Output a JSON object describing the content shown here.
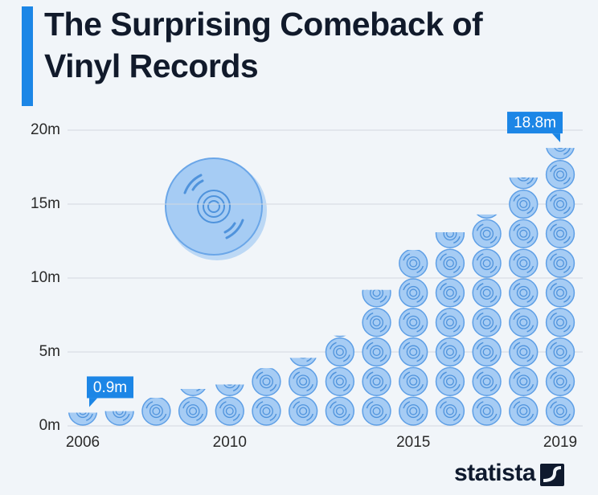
{
  "chart_data": {
    "type": "pictogram",
    "title": "The Surprising Comeback of Vinyl Records",
    "x": [
      2006,
      2007,
      2008,
      2009,
      2010,
      2011,
      2012,
      2013,
      2014,
      2015,
      2016,
      2017,
      2018,
      2019
    ],
    "values": [
      0.9,
      1.0,
      1.9,
      2.5,
      2.8,
      3.9,
      4.6,
      6.1,
      9.2,
      11.9,
      13.1,
      14.3,
      16.8,
      18.8
    ],
    "value_labels": [
      "0.9m",
      null,
      null,
      null,
      null,
      null,
      null,
      null,
      null,
      null,
      null,
      null,
      null,
      "18.8m"
    ],
    "color": "#a6ccf4",
    "xlim": [
      2006,
      2019
    ],
    "xticks": [
      2006,
      2010,
      2015,
      2019
    ],
    "ylim": [
      0,
      20
    ],
    "yticks": [
      {
        "value": 0,
        "label": "0m"
      },
      {
        "value": 5,
        "label": "5m"
      },
      {
        "value": 10,
        "label": "10m"
      },
      {
        "value": 15,
        "label": "15m"
      },
      {
        "value": 20,
        "label": "20m"
      }
    ],
    "grid": true
  },
  "source": "statista"
}
